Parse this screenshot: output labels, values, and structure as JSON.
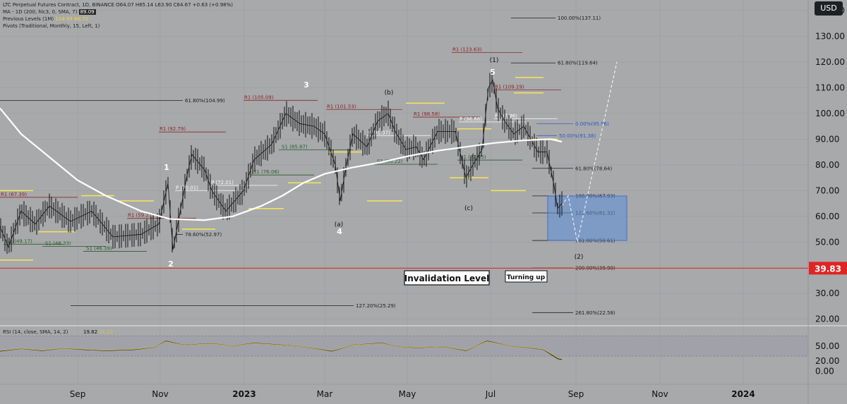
{
  "legend": {
    "symbol_line": "LTC Perpetual Futures Contract, 1D, BINANCE",
    "ohlc": "O64.07  H65.14  L63.90  C64.67  +0.63 (+0.98%)",
    "ma_label": "MA - 1D (200, hlc3, 0, SMA, 7)",
    "ma_value": "89.09",
    "prev_label": "Previous Levels (1M)",
    "prev_high": "114.93",
    "prev_low": "86.72",
    "pivots_label": "Pivots (Traditional, Monthly, 15, Left, 1)"
  },
  "currency_button": "USD",
  "price_badge": "39.83",
  "annotations": {
    "invalidation": "Invalidation Level",
    "turning_up": "Turning up"
  },
  "colors": {
    "background": "#a7a9ab",
    "ma": "#ffffff",
    "invalidation_line": "#e02424",
    "yellow_levels": "#f4e15a",
    "rsi_band": "#9c9fa8",
    "projection_box": "#5b8fd8"
  },
  "chart_data": {
    "type": "line",
    "symbol": "LTC Perpetual Futures Contract",
    "price_axis": {
      "ticks": [
        "140.00",
        "130.00",
        "120.00",
        "110.00",
        "100.00",
        "90.00",
        "80.00",
        "70.00",
        "60.00",
        "50.00",
        "40.00",
        "30.00",
        "20.00"
      ],
      "range": [
        18,
        143
      ]
    },
    "rsi_axis": {
      "ticks": [
        "50.00",
        "20.00",
        "0.00"
      ],
      "range": [
        -5,
        85
      ],
      "band": [
        30,
        70
      ]
    },
    "x_axis": {
      "ticks": [
        "Sep",
        "Nov",
        "2023",
        "Mar",
        "May",
        "Jul",
        "Sep",
        "Nov",
        "2024"
      ]
    },
    "price_path": [
      [
        0,
        56
      ],
      [
        12,
        48
      ],
      [
        30,
        62
      ],
      [
        50,
        57
      ],
      [
        70,
        64
      ],
      [
        100,
        58
      ],
      [
        130,
        62
      ],
      [
        160,
        52
      ],
      [
        200,
        53
      ],
      [
        225,
        57
      ],
      [
        238,
        73
      ],
      [
        245,
        47
      ],
      [
        265,
        76
      ],
      [
        272,
        84
      ],
      [
        290,
        78
      ],
      [
        300,
        70
      ],
      [
        320,
        62
      ],
      [
        345,
        70
      ],
      [
        360,
        82
      ],
      [
        385,
        88
      ],
      [
        405,
        100
      ],
      [
        425,
        96
      ],
      [
        445,
        95
      ],
      [
        460,
        92
      ],
      [
        475,
        80
      ],
      [
        482,
        66
      ],
      [
        490,
        79
      ],
      [
        500,
        92
      ],
      [
        520,
        87
      ],
      [
        535,
        97
      ],
      [
        550,
        100
      ],
      [
        560,
        93
      ],
      [
        575,
        86
      ],
      [
        590,
        87
      ],
      [
        600,
        82
      ],
      [
        620,
        93
      ],
      [
        645,
        93
      ],
      [
        660,
        75
      ],
      [
        670,
        80
      ],
      [
        683,
        86
      ],
      [
        692,
        110
      ],
      [
        698,
        113
      ],
      [
        705,
        102
      ],
      [
        715,
        97
      ],
      [
        728,
        92
      ],
      [
        742,
        95
      ],
      [
        752,
        90
      ],
      [
        762,
        85
      ],
      [
        775,
        85
      ],
      [
        785,
        72
      ],
      [
        790,
        63
      ],
      [
        796,
        65
      ]
    ],
    "ma_path": [
      [
        0,
        102
      ],
      [
        30,
        92
      ],
      [
        70,
        83
      ],
      [
        110,
        74
      ],
      [
        150,
        68
      ],
      [
        200,
        62
      ],
      [
        240,
        59
      ],
      [
        290,
        58.5
      ],
      [
        330,
        60
      ],
      [
        370,
        64
      ],
      [
        400,
        68
      ],
      [
        430,
        73
      ],
      [
        460,
        76.5
      ],
      [
        500,
        79
      ],
      [
        540,
        81
      ],
      [
        580,
        83.5
      ],
      [
        620,
        85.5
      ],
      [
        660,
        87
      ],
      [
        700,
        88.5
      ],
      [
        740,
        89.5
      ],
      [
        780,
        90
      ],
      [
        796,
        89
      ]
    ],
    "rsi_path": [
      [
        0,
        40
      ],
      [
        30,
        45
      ],
      [
        60,
        41
      ],
      [
        90,
        46
      ],
      [
        120,
        43
      ],
      [
        150,
        41
      ],
      [
        190,
        43
      ],
      [
        220,
        48
      ],
      [
        235,
        60
      ],
      [
        260,
        52
      ],
      [
        300,
        55
      ],
      [
        330,
        50
      ],
      [
        360,
        56
      ],
      [
        390,
        53
      ],
      [
        420,
        50
      ],
      [
        450,
        45
      ],
      [
        470,
        40
      ],
      [
        500,
        52
      ],
      [
        540,
        56
      ],
      [
        560,
        50
      ],
      [
        590,
        47
      ],
      [
        630,
        49
      ],
      [
        660,
        41
      ],
      [
        690,
        60
      ],
      [
        720,
        51
      ],
      [
        750,
        47
      ],
      [
        770,
        43
      ],
      [
        790,
        25
      ],
      [
        796,
        23
      ]
    ],
    "fib_levels": [
      {
        "label": "100.00%(137.11)",
        "value": 137.11
      },
      {
        "label": "61.80%(119.64)",
        "value": 119.64
      },
      {
        "label": "61.80%(104.99)",
        "value": 104.99
      },
      {
        "label": "0.00%(95.96)",
        "value": 95.96
      },
      {
        "label": "50.00%(91.38)",
        "value": 91.38
      },
      {
        "label": "61.80%(78.64)",
        "value": 78.64
      },
      {
        "label": "100.00%(67.93)",
        "value": 67.93
      },
      {
        "label": "122.60%(61.32)",
        "value": 61.32
      },
      {
        "label": "78.60%(52.97)",
        "value": 52.97
      },
      {
        "label": "161.80%(50.61)",
        "value": 50.61
      },
      {
        "label": "200.00%(39.90)",
        "value": 39.9
      },
      {
        "label": "127.20%(25.29)",
        "value": 25.29
      },
      {
        "label": "261.80%(22.58)",
        "value": 22.58
      }
    ],
    "invalidation_level": 39.83,
    "pivots_r1": [
      {
        "label": "R1 (67.39)",
        "value": 67.39
      },
      {
        "label": "R1 (92.79)",
        "value": 92.79
      },
      {
        "label": "R1 (59.21)",
        "value": 59.21
      },
      {
        "label": "R1 (105.09)",
        "value": 105.09
      },
      {
        "label": "R1 (101.53)",
        "value": 101.53
      },
      {
        "label": "R1 (98.58)",
        "value": 98.58
      },
      {
        "label": "R1 (123.63)",
        "value": 123.63
      },
      {
        "label": "R1 (109.19)",
        "value": 109.19
      }
    ],
    "pivots_s1": [
      {
        "label": "S1 (49.17)",
        "value": 49.17
      },
      {
        "label": "S1 (48.33)",
        "value": 48.33
      },
      {
        "label": "S1 (46.39)",
        "value": 46.39
      },
      {
        "label": "S1 (76.06)",
        "value": 76.06
      },
      {
        "label": "S1 (85.87)",
        "value": 85.87
      },
      {
        "label": "S1 (80.22)",
        "value": 80.22
      },
      {
        "label": "S1 (81.85)",
        "value": 81.85
      }
    ],
    "pivots_p": [
      {
        "label": "P (70.01)",
        "value": 70.01
      },
      {
        "label": "P (72.01)",
        "value": 72.01
      },
      {
        "label": "P (96.68)",
        "value": 96.68
      },
      {
        "label": "P (97.96)",
        "value": 97.96
      },
      {
        "label": "P (91.37)",
        "value": 91.37
      }
    ],
    "wave_labels": [
      {
        "text": "1",
        "bold": true
      },
      {
        "text": "2",
        "bold": true
      },
      {
        "text": "3",
        "bold": true
      },
      {
        "text": "4",
        "bold": true
      },
      {
        "text": "5",
        "bold": true
      },
      {
        "text": "(1)"
      },
      {
        "text": "(2)"
      },
      {
        "text": "(a)"
      },
      {
        "text": "(b)"
      },
      {
        "text": "(c)"
      }
    ]
  }
}
